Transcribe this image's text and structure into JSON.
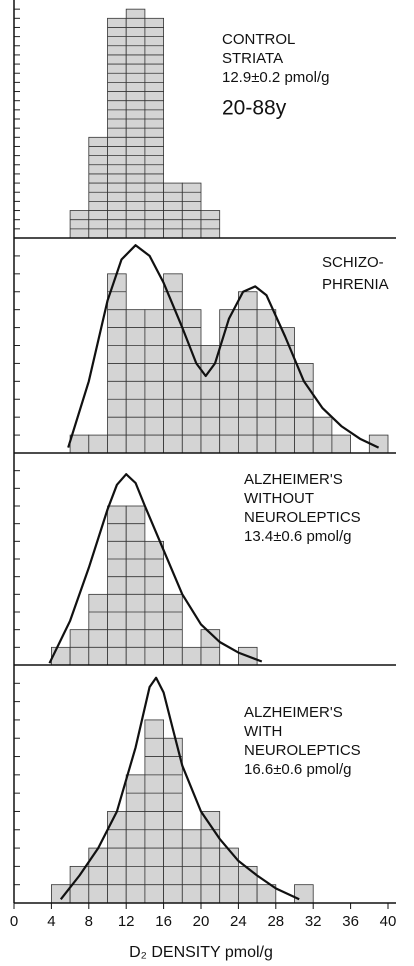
{
  "chart_data": [
    {
      "type": "histogram",
      "bins": [
        6,
        8,
        10,
        12,
        14,
        16,
        18,
        20,
        22
      ],
      "counts": [
        3,
        11,
        24,
        25,
        24,
        6,
        6,
        3
      ],
      "color": "#d4d4d4",
      "ylim": [
        0,
        26
      ],
      "annotations": [
        "CONTROL",
        "STRIATA",
        "12.9±0.2 pmol/g",
        "20-88y"
      ]
    },
    {
      "type": "histogram",
      "bins": [
        6,
        8,
        10,
        12,
        14,
        16,
        18,
        20,
        22,
        24,
        26,
        28,
        30,
        32,
        34,
        36,
        38,
        40
      ],
      "counts": [
        1,
        1,
        10,
        8,
        8,
        10,
        8,
        6,
        8,
        9,
        8,
        7,
        5,
        2,
        1,
        0,
        1
      ],
      "color": "#d4d4d4",
      "ylim": [
        0,
        12
      ],
      "annotations": [
        "SCHIZO-",
        "PHRENIA"
      ],
      "curve": {
        "x": [
          5.8,
          8,
          10,
          11.5,
          13,
          14.5,
          16,
          18,
          19.5,
          20.5,
          21.5,
          23,
          24.5,
          25.8,
          27,
          29,
          31,
          33,
          35,
          37,
          39
        ],
        "y": [
          0.3,
          4,
          8.5,
          10.8,
          11.6,
          11,
          9.5,
          7,
          5,
          4.3,
          5,
          7.5,
          9,
          9.3,
          8.8,
          6.5,
          4,
          2.5,
          1.5,
          0.8,
          0.3
        ]
      }
    },
    {
      "type": "histogram",
      "bins": [
        4,
        6,
        8,
        10,
        12,
        14,
        16,
        18,
        20,
        22,
        24,
        26
      ],
      "counts": [
        1,
        2,
        4,
        9,
        9,
        7,
        4,
        1,
        2,
        0,
        1
      ],
      "color": "#d4d4d4",
      "ylim": [
        0,
        12
      ],
      "annotations": [
        "ALZHEIMER'S",
        "WITHOUT",
        "NEUROLEPTICS",
        "13.4±0.6 pmol/g"
      ],
      "curve": {
        "x": [
          3.8,
          6,
          8,
          10,
          11,
          12,
          13,
          14,
          16,
          18,
          20,
          22,
          24,
          26.5
        ],
        "y": [
          0.1,
          2.5,
          5.5,
          8.8,
          10.2,
          10.8,
          10.3,
          9,
          6.5,
          4,
          2.3,
          1.3,
          0.7,
          0.2
        ]
      }
    },
    {
      "type": "histogram",
      "bins": [
        4,
        6,
        8,
        10,
        12,
        14,
        16,
        18,
        20,
        22,
        24,
        26,
        28,
        30,
        32
      ],
      "counts": [
        1,
        2,
        3,
        5,
        7,
        10,
        9,
        4,
        5,
        3,
        2,
        1,
        0,
        1
      ],
      "color": "#d4d4d4",
      "ylim": [
        0,
        13
      ],
      "annotations": [
        "ALZHEIMER'S",
        "WITH",
        "NEUROLEPTICS",
        "16.6±0.6 pmol/g"
      ],
      "curve": {
        "x": [
          5,
          7,
          9,
          11,
          13,
          14.5,
          15.2,
          16,
          17,
          18,
          20,
          22,
          24,
          26,
          28,
          30.5
        ],
        "y": [
          0.2,
          1.5,
          3,
          5,
          8.5,
          11.8,
          12.3,
          11.5,
          9.5,
          7.5,
          5,
          3.5,
          2.3,
          1.5,
          0.8,
          0.2
        ]
      },
      "xlim": [
        0,
        40
      ],
      "xticks": [
        0,
        4,
        8,
        12,
        16,
        20,
        24,
        28,
        32,
        36,
        40
      ],
      "xlabel": "D₂ DENSITY pmol/g"
    }
  ]
}
